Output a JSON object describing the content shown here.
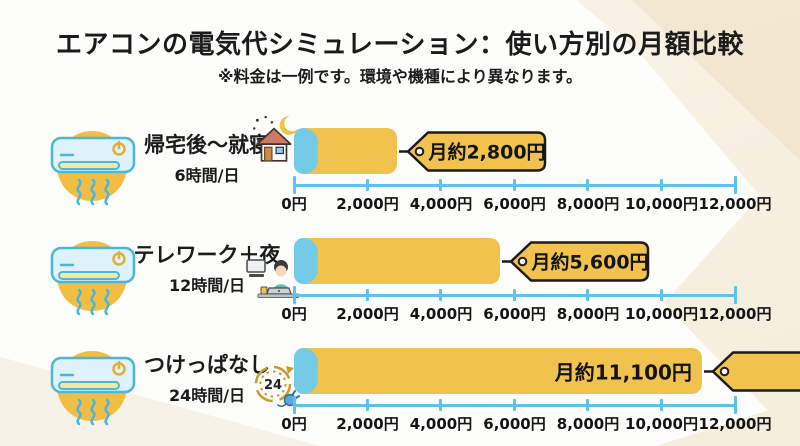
{
  "header": {
    "title": "エアコンの電気代シミュレーション：使い方別の月額比較",
    "subtitle": "※料金は一例です。環境や機種により異なります。"
  },
  "rows": [
    {
      "label": "帰宅後〜就寝",
      "hours": "6時間/日",
      "cost_label": "月約2,800円",
      "icon": "house-night-icon"
    },
    {
      "label": "テレワーク＋夜",
      "hours": "12時間/日",
      "cost_label": "月約5,600円",
      "icon": "telework-person-icon"
    },
    {
      "label": "つけっぱなし",
      "hours": "24時間/日",
      "cost_label": "月約11,100円",
      "icon": "clock-24h-plug-icon"
    }
  ],
  "axis": {
    "tick_labels": [
      "0円",
      "2,000円",
      "4,000円",
      "6,000円",
      "8,000円",
      "10,000円",
      "12,000円"
    ],
    "min": 0,
    "max": 12000
  },
  "icons": {
    "aircon": "aircon-icon",
    "clock_badge": "24"
  },
  "colors": {
    "bar_yellow": "#F2C24E",
    "bar_blue": "#74CBE8",
    "axis_blue": "#5EC3E8",
    "circle_yellow": "#F2BD45",
    "text_black": "#141414",
    "background_cream": "#F6EFE0"
  },
  "chart_data": {
    "type": "bar",
    "orientation": "horizontal",
    "title": "エアコンの電気代シミュレーション：使い方別の月額比較",
    "note": "※料金は一例です。環境や機種により異なります。",
    "categories": [
      "帰宅後〜就寝（6時間/日）",
      "テレワーク＋夜（12時間/日）",
      "つけっぱなし（24時間/日）"
    ],
    "values": [
      2800,
      5600,
      11100
    ],
    "data_labels": [
      "月約2,800円",
      "月約5,600円",
      "月約11,100円"
    ],
    "unit": "円/月",
    "xlabel": "",
    "ylabel": "",
    "xlim": [
      0,
      12000
    ],
    "x_ticks": [
      0,
      2000,
      4000,
      6000,
      8000,
      10000,
      12000
    ],
    "grid": false,
    "legend": false
  }
}
